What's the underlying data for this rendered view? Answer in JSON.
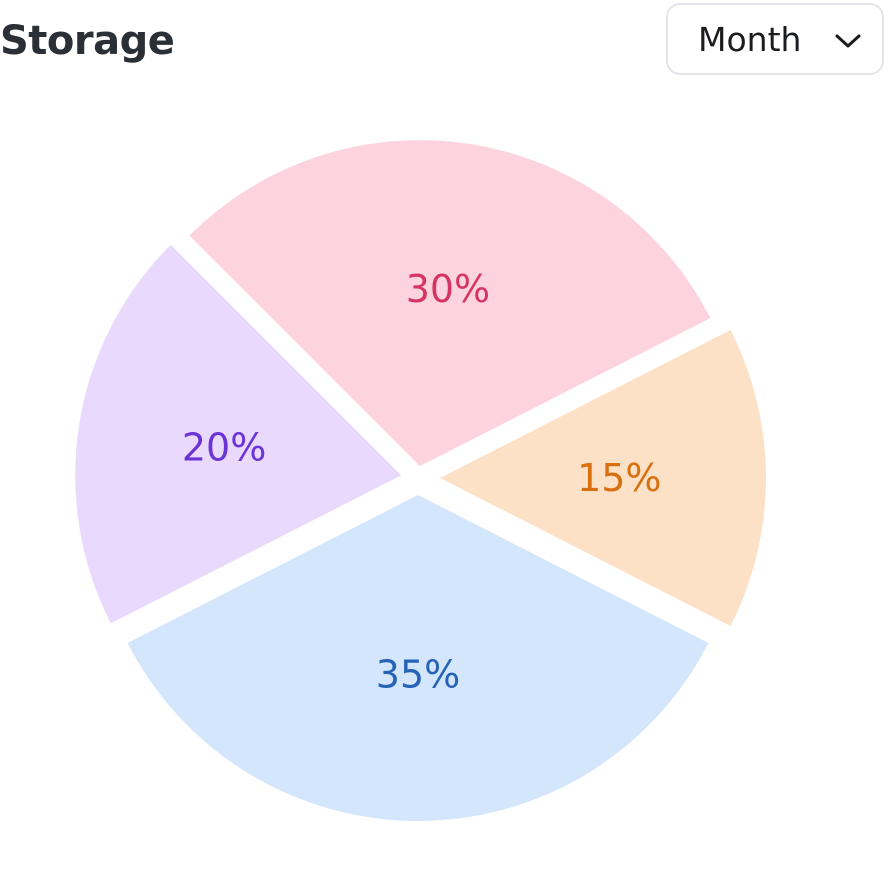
{
  "header": {
    "title": "Storage",
    "period_select": {
      "value": "Month",
      "icon": "chevron-down-icon"
    }
  },
  "chart_data": {
    "type": "pie",
    "title": "",
    "exploded": true,
    "slices": [
      {
        "label": "30%",
        "value": 30,
        "fill": "#fcd3df",
        "text_color": "#d63564"
      },
      {
        "label": "15%",
        "value": 15,
        "fill": "#fde1c7",
        "text_color": "#d9700f"
      },
      {
        "label": "35%",
        "value": 35,
        "fill": "#d4e6fc",
        "text_color": "#2663b7"
      },
      {
        "label": "20%",
        "value": 20,
        "fill": "#e8d9fd",
        "text_color": "#6c33d6"
      }
    ]
  }
}
